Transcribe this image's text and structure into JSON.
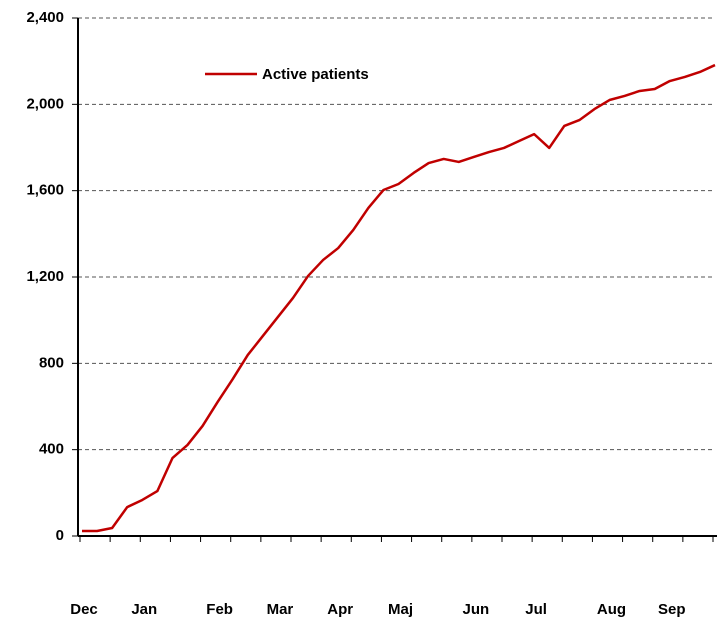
{
  "chart_data": {
    "type": "line",
    "categories": [
      "Dec",
      null,
      null,
      null,
      "Jan",
      null,
      null,
      null,
      null,
      "Feb",
      null,
      null,
      null,
      "Mar",
      null,
      null,
      null,
      "Apr",
      null,
      null,
      null,
      "Maj",
      null,
      null,
      null,
      null,
      "Jun",
      null,
      null,
      null,
      "Jul",
      null,
      null,
      null,
      null,
      "Aug",
      null,
      null,
      null,
      "Sep",
      null,
      null,
      null
    ],
    "series": [
      {
        "name": "Active patients",
        "color": "#c00000",
        "values": [
          23,
          23,
          37,
          134,
          167,
          208,
          361,
          422,
          510,
          621,
          727,
          839,
          927,
          1015,
          1103,
          1205,
          1279,
          1334,
          1418,
          1520,
          1603,
          1631,
          1682,
          1728,
          1747,
          1733,
          1756,
          1779,
          1798,
          1830,
          1862,
          1798,
          1900,
          1927,
          1978,
          2020,
          2039,
          2062,
          2071,
          2108,
          2127,
          2150,
          2182
        ]
      }
    ],
    "ylim": [
      0,
      2400
    ],
    "yticks": [
      0,
      {
        "value": 400,
        "label": "400"
      },
      {
        "value": 800,
        "label": "800"
      },
      {
        "value": 1200,
        "label": "1,200"
      },
      {
        "value": 1600,
        "label": "1,600"
      },
      {
        "value": 2000,
        "label": "2,000"
      },
      {
        "value": 2400,
        "label": "2,400"
      }
    ],
    "grid": true,
    "legend": "upper left"
  }
}
